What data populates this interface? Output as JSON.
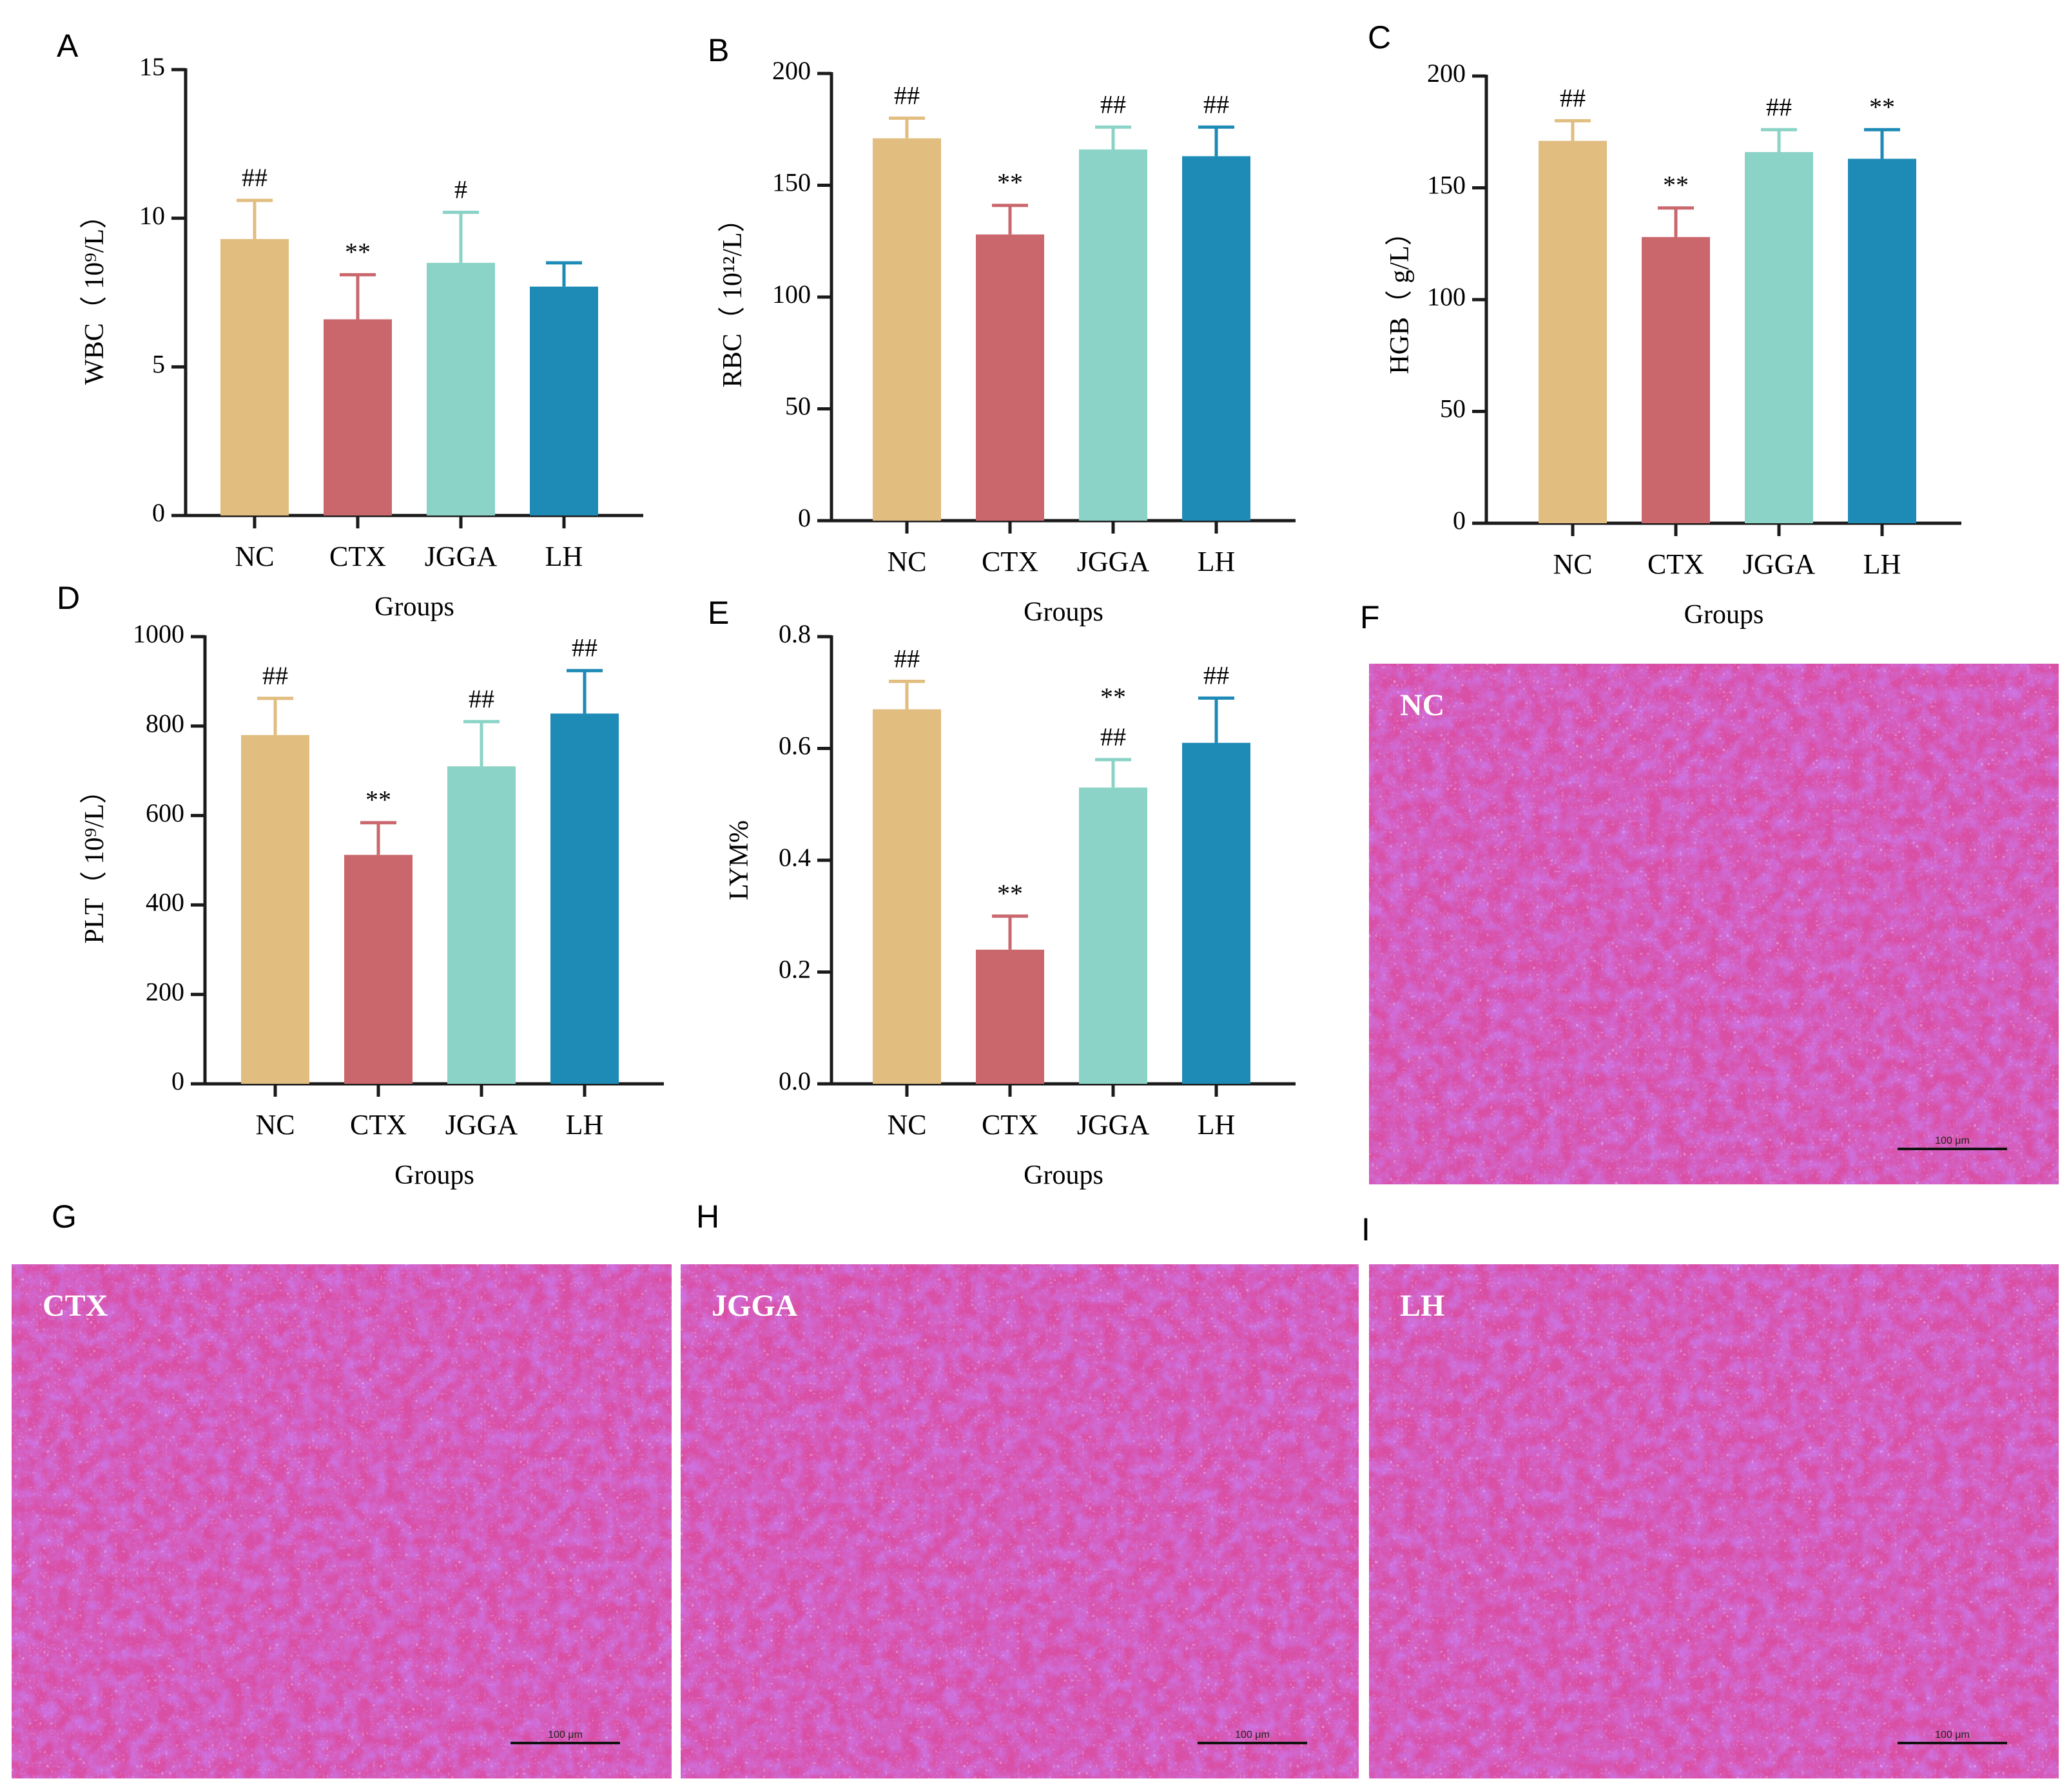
{
  "colors": {
    "NC": "#e1bd7f",
    "CTX": "#c9676d",
    "JGGA": "#8ad3c6",
    "LH": "#1e8ab6"
  },
  "chart_data": [
    {
      "panel": "A",
      "type": "bar",
      "categories": [
        "NC",
        "CTX",
        "JGGA",
        "LH"
      ],
      "values": [
        9.3,
        6.6,
        8.5,
        7.7
      ],
      "errors": [
        1.3,
        1.5,
        1.7,
        0.8
      ],
      "annotations": [
        [
          "##"
        ],
        [
          "**"
        ],
        [
          "#"
        ],
        []
      ],
      "ylabel": "WBC（ 10⁹/L）",
      "xlabel": "Groups",
      "ylim": [
        0,
        15
      ],
      "yticks": [
        0,
        5,
        10,
        15
      ],
      "ytick_labels": [
        "0",
        "5",
        "10",
        "15"
      ]
    },
    {
      "panel": "B",
      "type": "bar",
      "categories": [
        "NC",
        "CTX",
        "JGGA",
        "LH"
      ],
      "values": [
        171,
        128,
        166,
        163
      ],
      "errors": [
        9,
        13,
        10,
        13
      ],
      "annotations": [
        [
          "##"
        ],
        [
          "**"
        ],
        [
          "##"
        ],
        [
          "##"
        ]
      ],
      "ylabel": "RBC（ 10¹²/L）",
      "xlabel": "Groups",
      "ylim": [
        0,
        200
      ],
      "yticks": [
        0,
        50,
        100,
        150,
        200
      ],
      "ytick_labels": [
        "0",
        "50",
        "100",
        "150",
        "200"
      ]
    },
    {
      "panel": "C",
      "type": "bar",
      "categories": [
        "NC",
        "CTX",
        "JGGA",
        "LH"
      ],
      "values": [
        171,
        128,
        166,
        163
      ],
      "errors": [
        9,
        13,
        10,
        13
      ],
      "annotations": [
        [
          "##"
        ],
        [
          "**"
        ],
        [
          "##"
        ],
        [
          "**"
        ]
      ],
      "ylabel": "HGB（ g/L）",
      "xlabel": "Groups",
      "ylim": [
        0,
        200
      ],
      "yticks": [
        0,
        50,
        100,
        150,
        200
      ],
      "ytick_labels": [
        "0",
        "50",
        "100",
        "150",
        "200"
      ]
    },
    {
      "panel": "D",
      "type": "bar",
      "categories": [
        "NC",
        "CTX",
        "JGGA",
        "LH"
      ],
      "values": [
        780,
        512,
        710,
        828
      ],
      "errors": [
        82,
        72,
        100,
        96
      ],
      "annotations": [
        [
          "##"
        ],
        [
          "**"
        ],
        [
          "##"
        ],
        [
          "##"
        ]
      ],
      "ylabel": "PLT（ 10⁹/L）",
      "xlabel": "Groups",
      "ylim": [
        0,
        1000
      ],
      "yticks": [
        0,
        200,
        400,
        600,
        800,
        1000
      ],
      "ytick_labels": [
        "0",
        "200",
        "400",
        "600",
        "800",
        "1000"
      ]
    },
    {
      "panel": "E",
      "type": "bar",
      "categories": [
        "NC",
        "CTX",
        "JGGA",
        "LH"
      ],
      "values": [
        0.67,
        0.24,
        0.53,
        0.61
      ],
      "errors": [
        0.05,
        0.06,
        0.05,
        0.08
      ],
      "annotations": [
        [
          "##"
        ],
        [
          "**"
        ],
        [
          "**",
          "##"
        ],
        [
          "##"
        ]
      ],
      "ylabel": "LYM%",
      "xlabel": "Groups",
      "ylim": [
        0,
        0.8
      ],
      "yticks": [
        0,
        0.2,
        0.4,
        0.6,
        0.8
      ],
      "ytick_labels": [
        "0.0",
        "0.2",
        "0.4",
        "0.6",
        "0.8"
      ]
    }
  ],
  "histology": [
    {
      "panel": "F",
      "label": "NC",
      "scale": "100 μm"
    },
    {
      "panel": "G",
      "label": "CTX",
      "scale": "100 μm"
    },
    {
      "panel": "H",
      "label": "JGGA",
      "scale": "100 μm"
    },
    {
      "panel": "I",
      "label": "LH",
      "scale": "100 μm"
    }
  ]
}
